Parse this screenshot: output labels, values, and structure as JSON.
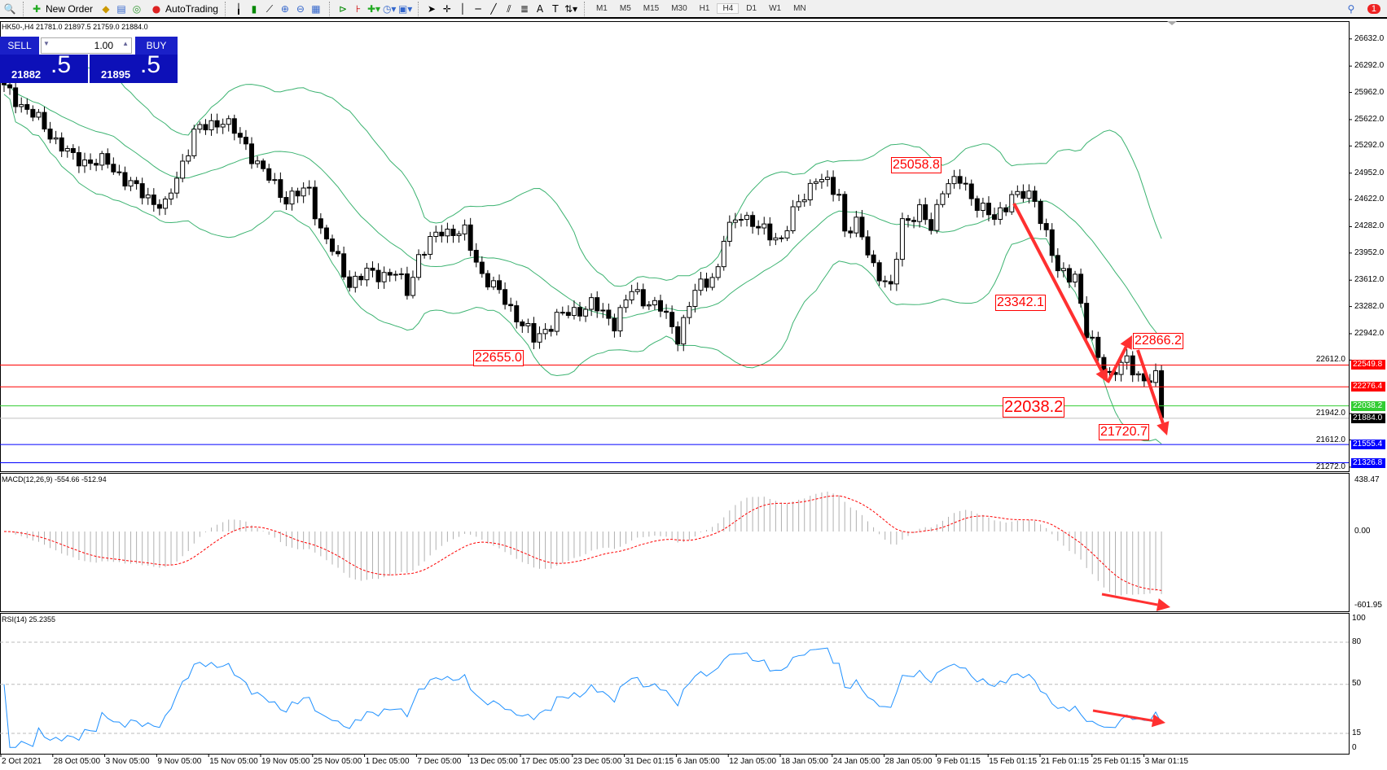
{
  "toolbar": {
    "new_order": "New Order",
    "autotrading": "AutoTrading",
    "timeframes": [
      "M1",
      "M5",
      "M15",
      "M30",
      "H1",
      "H4",
      "D1",
      "W1",
      "MN"
    ],
    "active_timeframe": "H4",
    "notification_count": "1"
  },
  "chart_header": "HK50-,H4  21781.0 21897.5 21759.0 21884.0",
  "trade_panel": {
    "sell": "SELL",
    "buy": "BUY",
    "volume": "1.00",
    "sell_price_main": "21882",
    "sell_price_big": ".5",
    "buy_price_main": "21895",
    "buy_price_big": ".5"
  },
  "price_axis": [
    "26632.0",
    "26292.0",
    "25962.0",
    "25622.0",
    "25292.0",
    "24952.0",
    "24622.0",
    "24282.0",
    "23952.0",
    "23612.0",
    "23282.0",
    "22942.0",
    "22612.0",
    "21942.0",
    "21612.0",
    "21272.0"
  ],
  "hlines": [
    {
      "price": "22549.8",
      "color": "#ff0000"
    },
    {
      "price": "22276.4",
      "color": "#ff0000"
    },
    {
      "price": "22038.2",
      "color": "#32cd32"
    },
    {
      "price": "21884.0",
      "color": "#c0c0c0",
      "tag_color": "#000000"
    },
    {
      "price": "21555.4",
      "color": "#0000ff"
    },
    {
      "price": "21326.8",
      "color": "#0000ff"
    }
  ],
  "annotations": [
    "25058.8",
    "23342.1",
    "22655.0",
    "22866.2",
    "22038.2",
    "21720.7"
  ],
  "macd": {
    "label": "MACD(12,26,9) -554.66 -512.94",
    "axis": [
      "438.47",
      "0.00",
      "-601.95"
    ]
  },
  "rsi": {
    "label": "RSI(14) 25.2355",
    "axis": [
      "100",
      "80",
      "50",
      "15",
      "0"
    ],
    "levels": [
      80,
      50,
      15
    ]
  },
  "time_axis": [
    "2 Oct 2021",
    "28 Oct 05:00",
    "3 Nov 05:00",
    "9 Nov 05:00",
    "15 Nov 05:00",
    "19 Nov 05:00",
    "25 Nov 05:00",
    "1 Dec 05:00",
    "7 Dec 05:00",
    "13 Dec 05:00",
    "17 Dec 05:00",
    "23 Dec 05:00",
    "31 Dec 01:15",
    "6 Jan 05:00",
    "12 Jan 05:00",
    "18 Jan 05:00",
    "24 Jan 05:00",
    "28 Jan 05:00",
    "9 Feb 01:15",
    "15 Feb 01:15",
    "21 Feb 01:15",
    "25 Feb 01:15",
    "3 Mar 01:15"
  ],
  "colors": {
    "bands": "#3cb371",
    "macd_signal": "#ff0000",
    "rsi": "#1e90ff",
    "arrows": "#ff3030"
  },
  "chart_data": {
    "type": "candlestick",
    "symbol": "HK50-",
    "timeframe": "H4",
    "price_anchors_bar_close": [
      [
        0,
        26013
      ],
      [
        5,
        25682
      ],
      [
        12,
        25129
      ],
      [
        18,
        25074
      ],
      [
        23,
        24742
      ],
      [
        28,
        24521
      ],
      [
        33,
        25461
      ],
      [
        38,
        25626
      ],
      [
        42,
        25295
      ],
      [
        45,
        24963
      ],
      [
        49,
        24632
      ],
      [
        53,
        24742
      ],
      [
        55,
        24245
      ],
      [
        60,
        23582
      ],
      [
        63,
        23692
      ],
      [
        68,
        23692
      ],
      [
        70,
        23471
      ],
      [
        72,
        23913
      ],
      [
        76,
        24245
      ],
      [
        80,
        24190
      ],
      [
        83,
        23692
      ],
      [
        87,
        23361
      ],
      [
        92,
        22864
      ],
      [
        96,
        23140
      ],
      [
        102,
        23306
      ],
      [
        106,
        23085
      ],
      [
        109,
        23471
      ],
      [
        114,
        23250
      ],
      [
        117,
        22919
      ],
      [
        120,
        23471
      ],
      [
        124,
        23748
      ],
      [
        125,
        24135
      ],
      [
        128,
        24466
      ],
      [
        131,
        24245
      ],
      [
        135,
        24135
      ],
      [
        138,
        24577
      ],
      [
        141,
        24908
      ],
      [
        145,
        24687
      ],
      [
        146,
        24245
      ],
      [
        148,
        24300
      ],
      [
        151,
        23803
      ],
      [
        154,
        23471
      ],
      [
        156,
        24356
      ],
      [
        159,
        24466
      ],
      [
        161,
        24245
      ],
      [
        163,
        24798
      ],
      [
        166,
        24853
      ],
      [
        169,
        24577
      ],
      [
        172,
        24356
      ],
      [
        175,
        24687
      ],
      [
        179,
        24632
      ],
      [
        181,
        24190
      ],
      [
        183,
        23692
      ],
      [
        186,
        23692
      ],
      [
        188,
        22919
      ],
      [
        192,
        22422
      ],
      [
        195,
        22588
      ],
      [
        198,
        22366
      ],
      [
        200,
        22366
      ],
      [
        201,
        21884
      ]
    ]
  }
}
